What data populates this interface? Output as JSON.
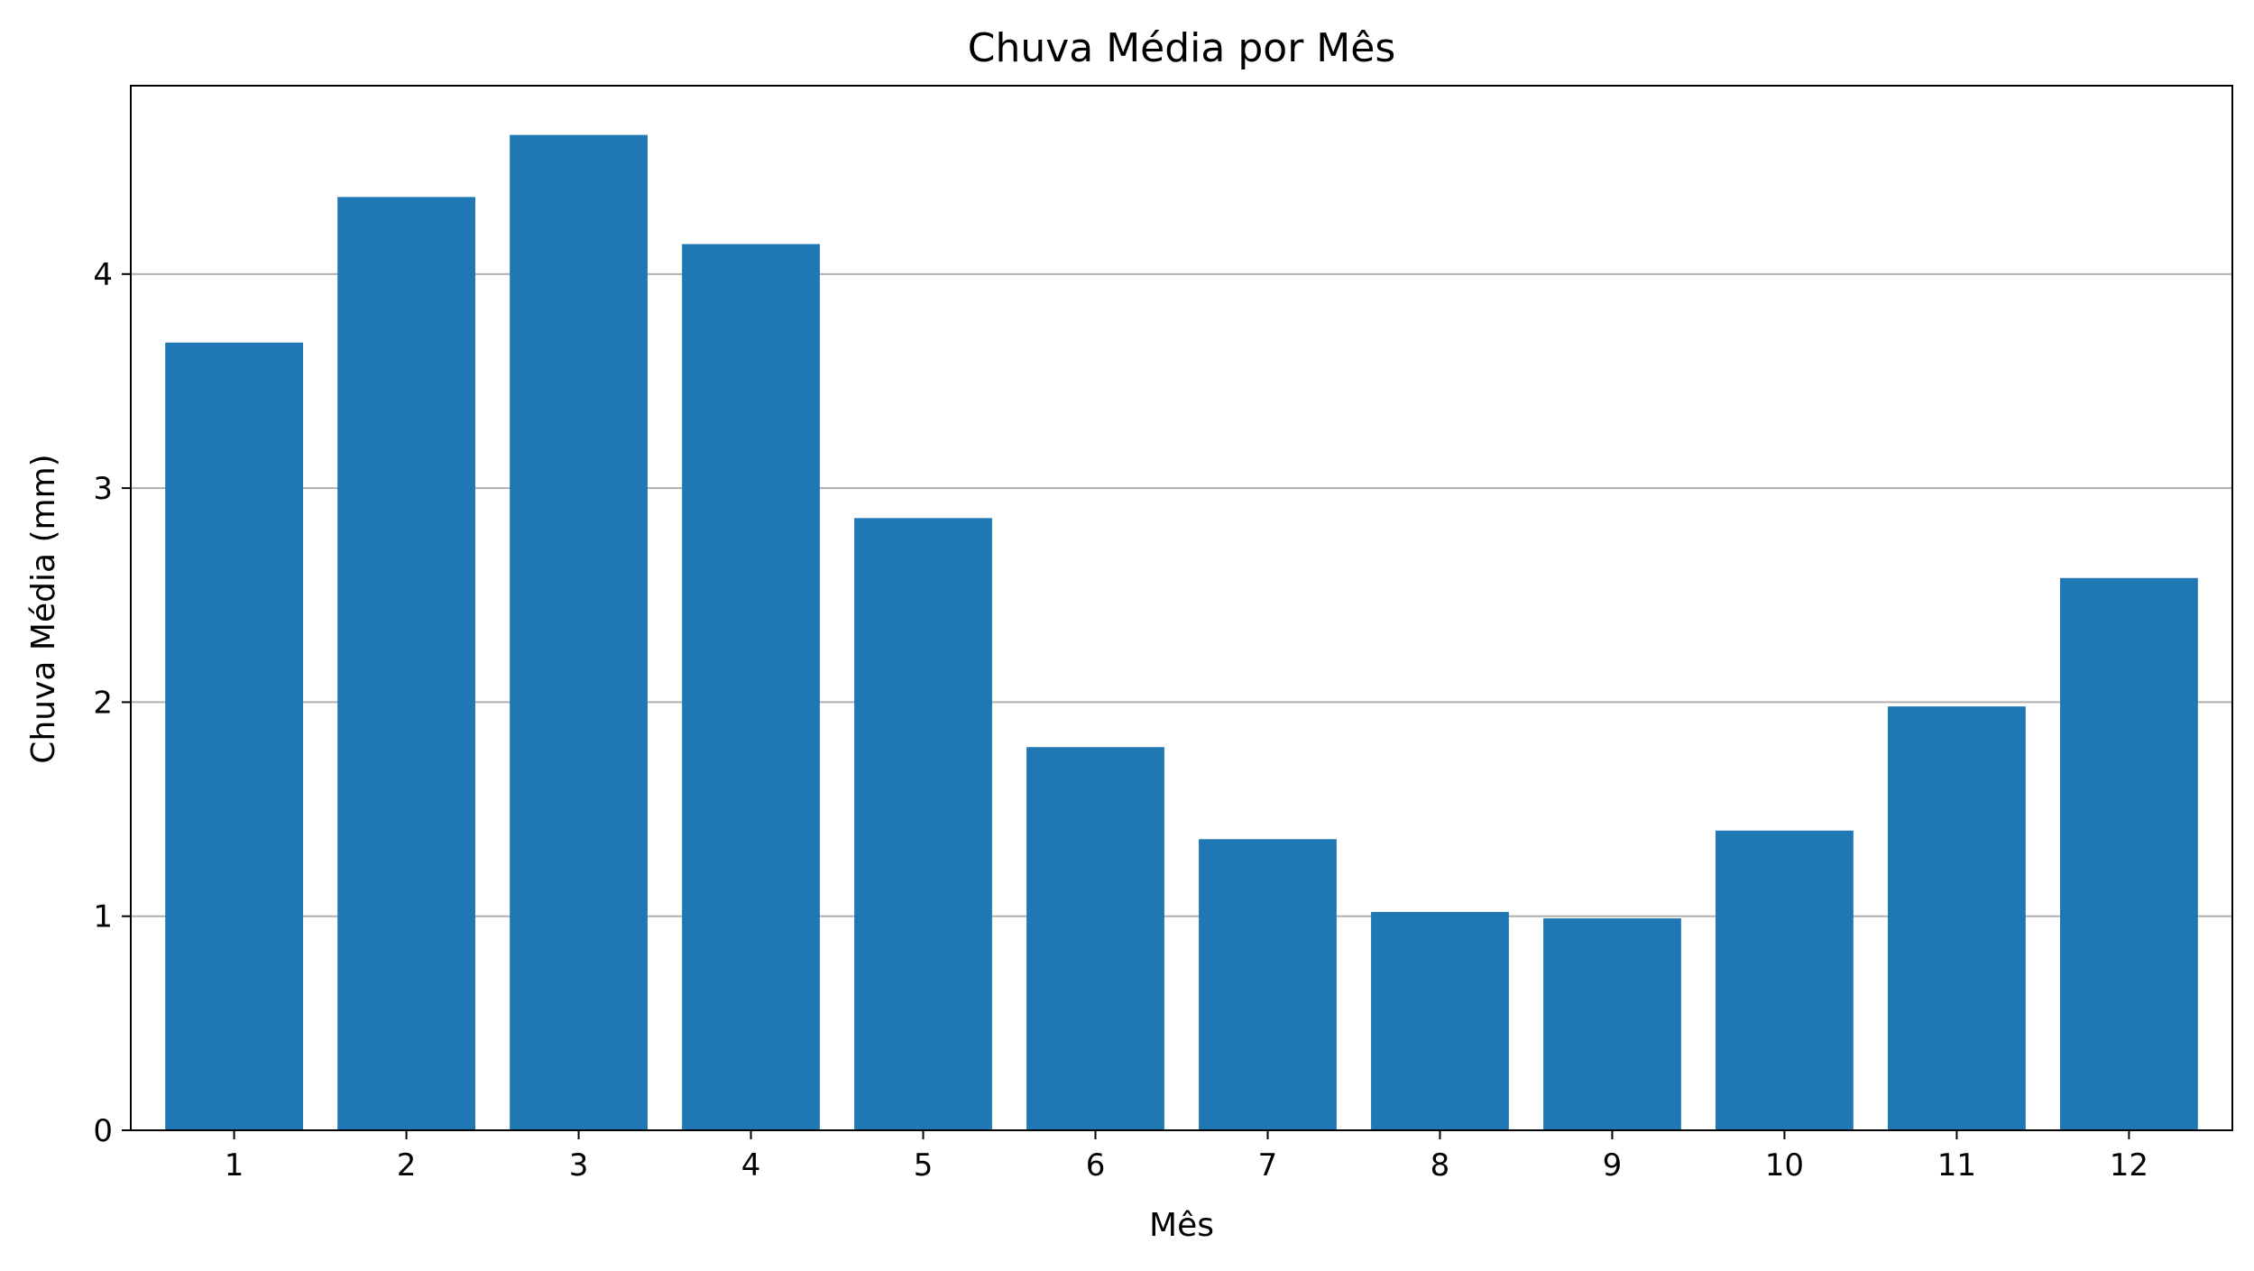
{
  "chart_data": {
    "type": "bar",
    "title": "Chuva Média por Mês",
    "xlabel": "Mês",
    "ylabel": "Chuva Média (mm)",
    "categories": [
      "1",
      "2",
      "3",
      "4",
      "5",
      "6",
      "7",
      "8",
      "9",
      "10",
      "11",
      "12"
    ],
    "values": [
      3.68,
      4.36,
      4.65,
      4.14,
      2.86,
      1.79,
      1.36,
      1.02,
      0.99,
      1.4,
      1.98,
      2.58
    ],
    "yticks": [
      0,
      1,
      2,
      3,
      4
    ],
    "ylim": [
      0,
      4.88
    ],
    "grid": "y",
    "bar_color": "#1f77b4",
    "grid_color": "#b0b0b0"
  }
}
